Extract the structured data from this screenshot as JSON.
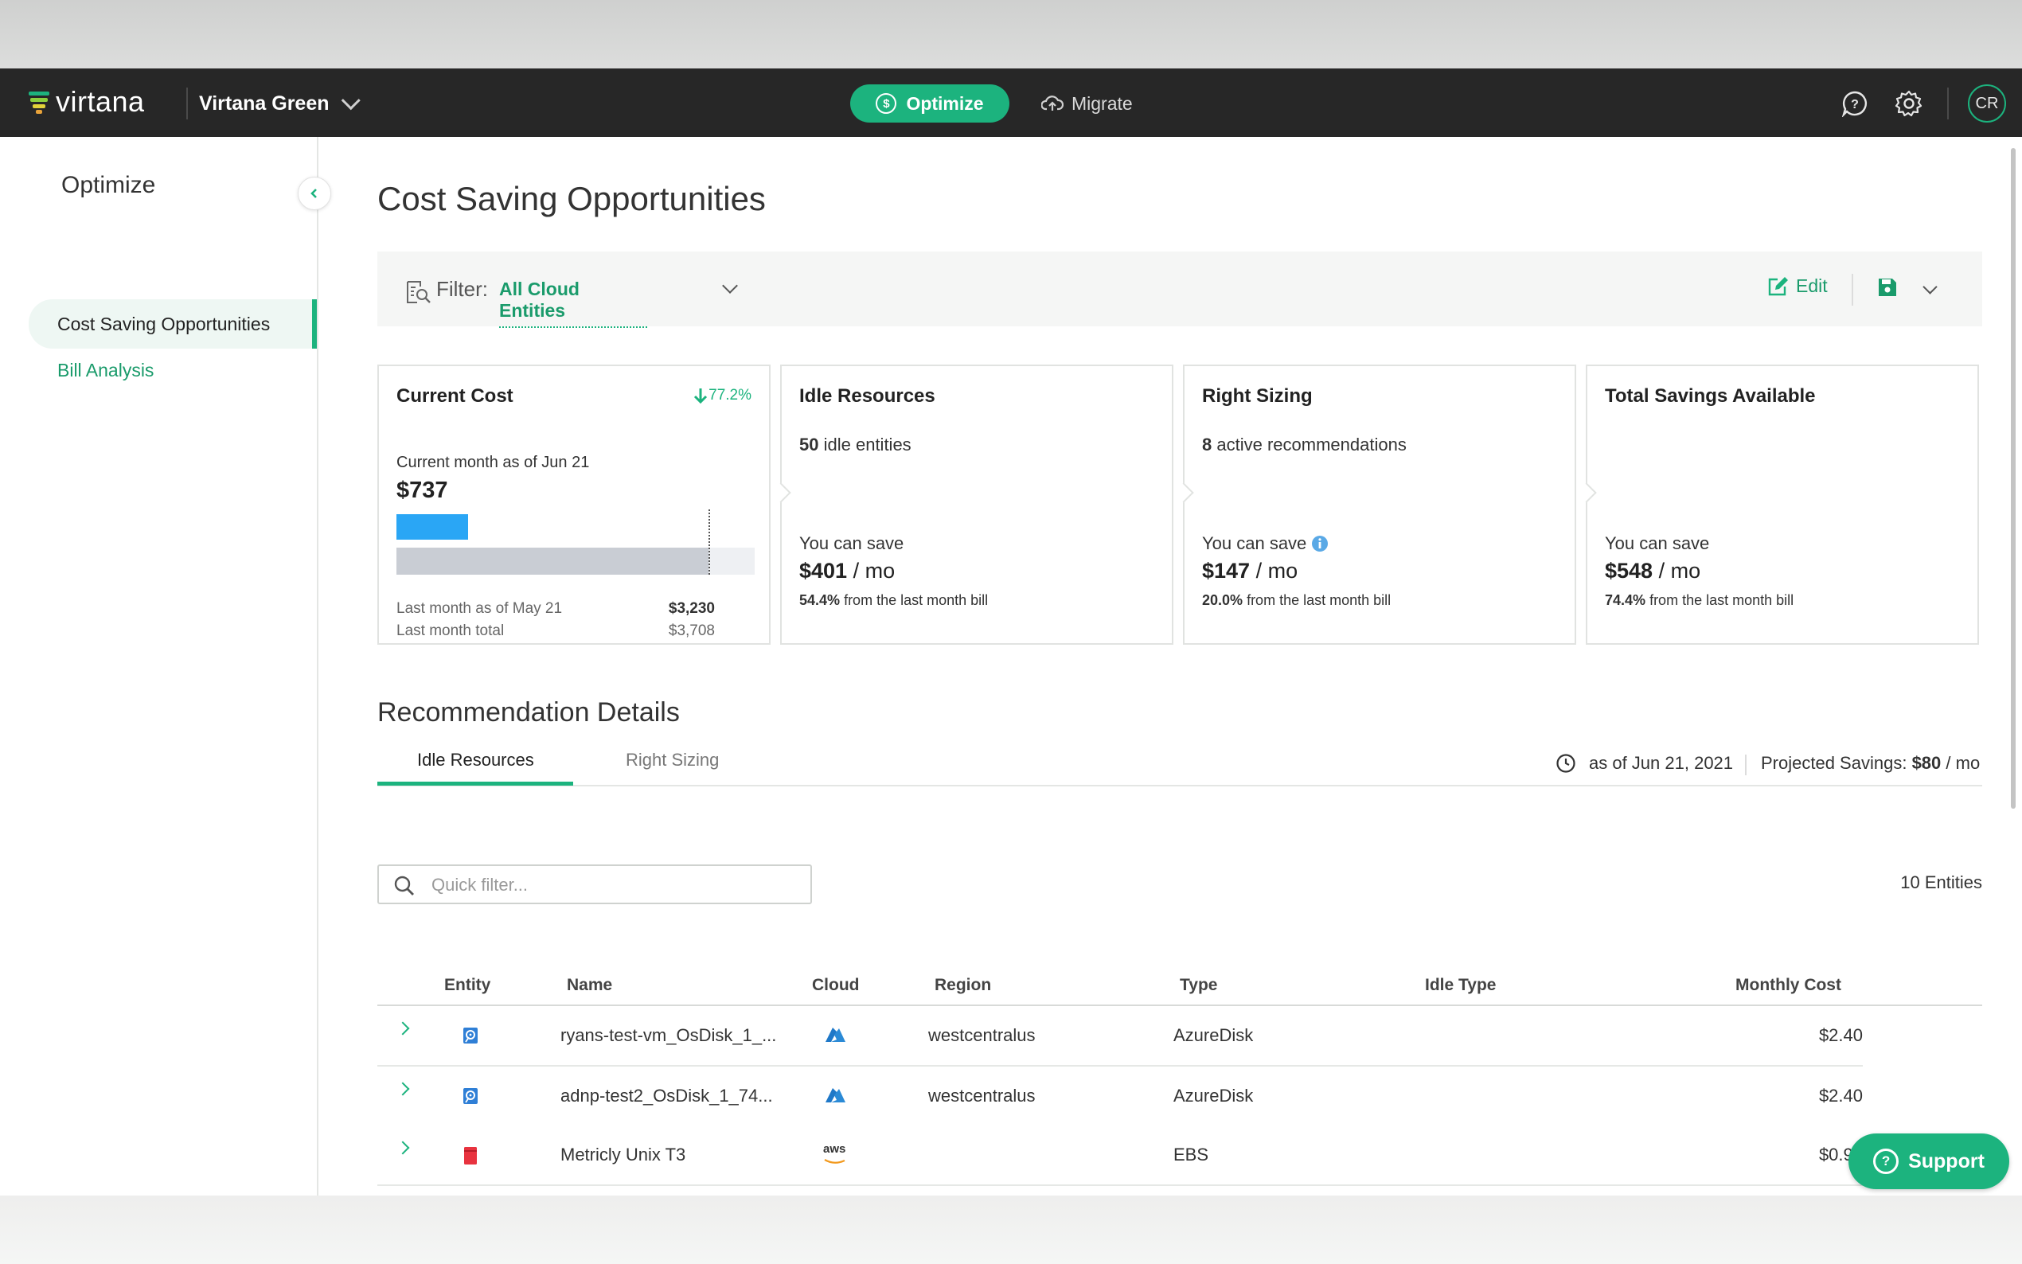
{
  "header": {
    "logo_text": "virtana",
    "org_name": "Virtana Green",
    "optimize_label": "Optimize",
    "migrate_label": "Migrate",
    "avatar_initials": "CR"
  },
  "sidebar": {
    "title": "Optimize",
    "items": [
      {
        "label": "Cost Saving Opportunities",
        "active": true
      },
      {
        "label": "Bill Analysis",
        "active": false
      }
    ]
  },
  "main": {
    "title": "Cost Saving Opportunities",
    "filter": {
      "label": "Filter:",
      "value": "All Cloud Entities"
    },
    "edit_label": "Edit"
  },
  "cards": {
    "current_cost": {
      "title": "Current Cost",
      "trend": "77.2%",
      "label": "Current month as of Jun 21",
      "amount": "$737",
      "last_month_label": "Last month as of May 21",
      "last_month_value": "$3,230",
      "last_total_label": "Last month total",
      "last_total_value": "$3,708",
      "current_fraction": 0.199,
      "last_asof_fraction": 0.871
    },
    "idle": {
      "title": "Idle Resources",
      "count": "50",
      "count_suffix": "idle entities",
      "save_label": "You can save",
      "amount": "$401",
      "per": "/ mo",
      "pct": "54.4%",
      "note": "from the last month bill"
    },
    "rightsizing": {
      "title": "Right Sizing",
      "count": "8",
      "count_suffix": "active recommendations",
      "save_label": "You can save",
      "amount": "$147",
      "per": "/ mo",
      "pct": "20.0%",
      "note": "from the last month bill"
    },
    "total": {
      "title": "Total Savings Available",
      "save_label": "You can save",
      "amount": "$548",
      "per": "/ mo",
      "pct": "74.4%",
      "note": "from the last month bill"
    }
  },
  "recommendations": {
    "title": "Recommendation Details",
    "tabs": [
      "Idle Resources",
      "Right Sizing"
    ],
    "asof": "as of Jun 21, 2021",
    "projected_label": "Projected Savings:",
    "projected_amount": "$80",
    "projected_per": "/ mo",
    "quick_filter_placeholder": "Quick filter...",
    "entities_count": "10 Entities",
    "columns": [
      "Entity",
      "Name",
      "Cloud",
      "Region",
      "Type",
      "Idle Type",
      "Monthly Cost"
    ],
    "rows": [
      {
        "entity_icon": "azure-disk-icon",
        "name": "ryans-test-vm_OsDisk_1_...",
        "cloud_icon": "azure-icon",
        "region": "westcentralus",
        "type": "AzureDisk",
        "idle_type": "",
        "cost": "$2.40"
      },
      {
        "entity_icon": "azure-disk-icon",
        "name": "adnp-test2_OsDisk_1_74...",
        "cloud_icon": "azure-icon",
        "region": "westcentralus",
        "type": "AzureDisk",
        "idle_type": "",
        "cost": "$2.40"
      },
      {
        "entity_icon": "ebs-volume-icon",
        "name": "Metricly Unix T3",
        "cloud_icon": "aws-icon",
        "cloud_text": "aws",
        "region": "",
        "type": "EBS",
        "idle_type": "",
        "cost": "$0.96"
      }
    ]
  },
  "support_label": "Support",
  "colors": {
    "brand_green": "#1cb37e",
    "header_bg": "#272727",
    "current_bar": "#2aa6f5",
    "link_green": "#1a9b6b"
  }
}
